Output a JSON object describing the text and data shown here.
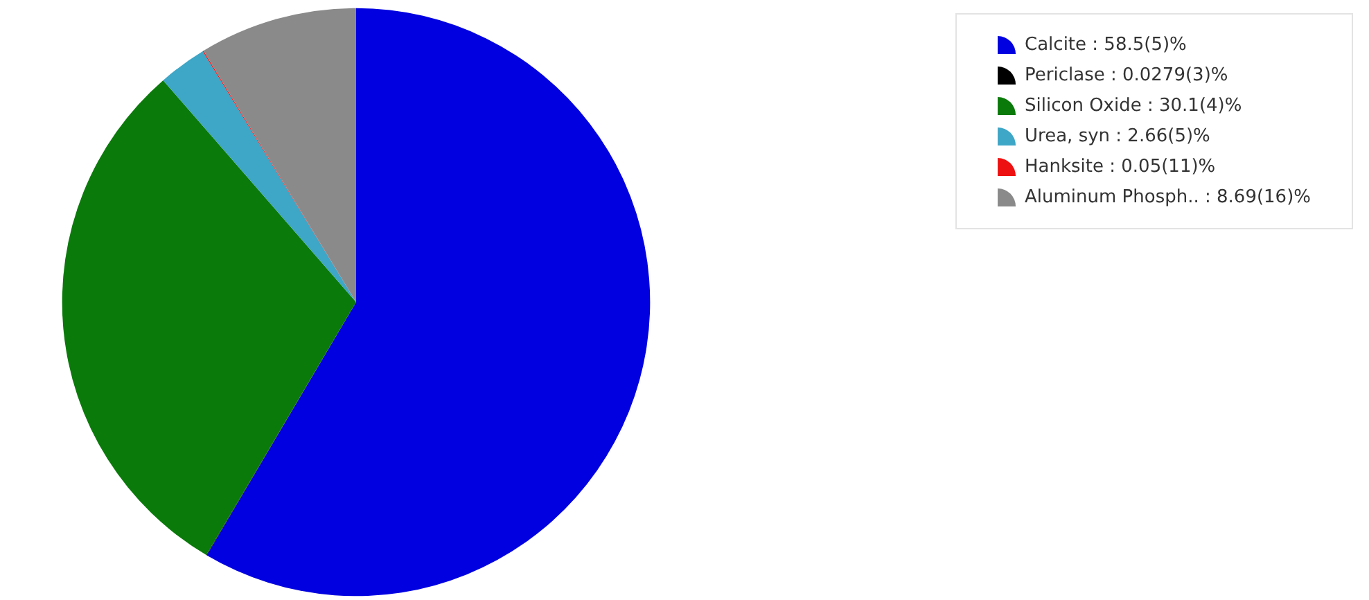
{
  "chart_data": {
    "type": "pie",
    "categories": [
      "Calcite : 58.5(5)%",
      "Periclase : 0.0279(3)%",
      "Silicon Oxide : 30.1(4)%",
      "Urea, syn : 2.66(5)%",
      "Hanksite : 0.05(11)%",
      "Aluminum Phosph.. : 8.69(16)%"
    ],
    "values": [
      58.5,
      0.0279,
      30.1,
      2.66,
      0.05,
      8.69
    ],
    "colors": [
      "#0000e0",
      "#000000",
      "#0a7a0a",
      "#3ea6c6",
      "#ee1111",
      "#8a8a8a"
    ],
    "legend": "top right"
  }
}
